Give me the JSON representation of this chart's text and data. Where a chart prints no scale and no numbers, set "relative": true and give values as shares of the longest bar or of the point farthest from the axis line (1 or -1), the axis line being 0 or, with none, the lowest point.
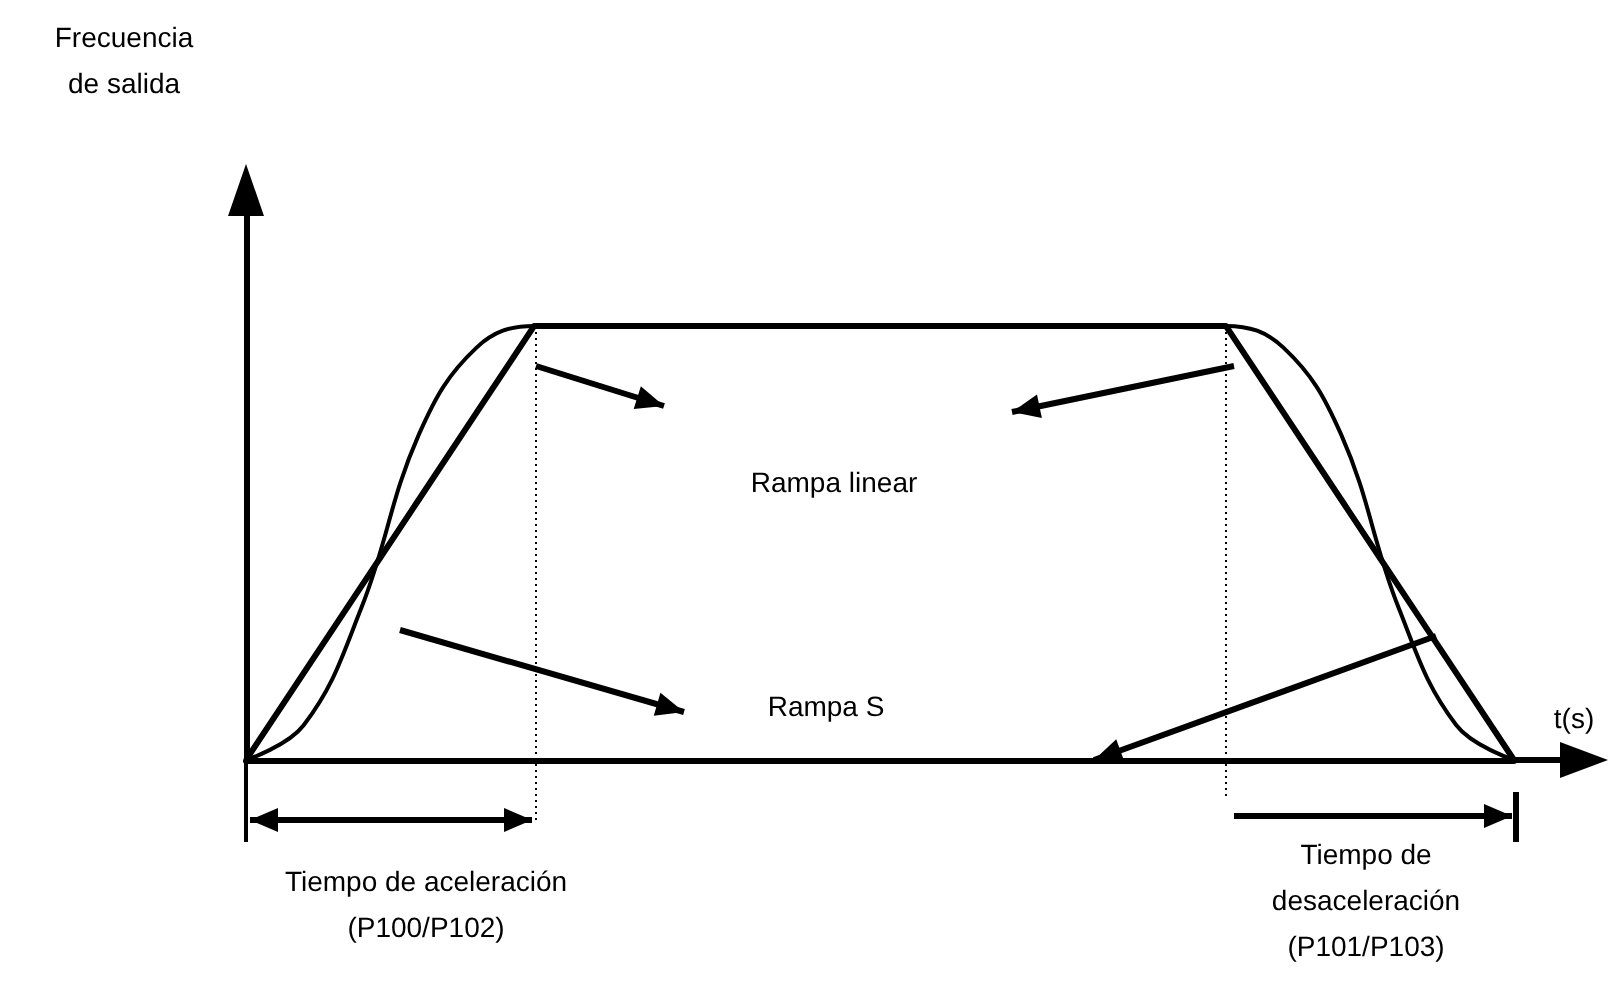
{
  "chart_data": {
    "type": "line",
    "relative": true,
    "xlabel": "t(s)",
    "categories": [
      null,
      null,
      null,
      null,
      null,
      null,
      null,
      null,
      null,
      null,
      null,
      null,
      null,
      null,
      null,
      null,
      null,
      null,
      null,
      null,
      null,
      null,
      null
    ],
    "series": [
      {
        "color": "#000000",
        "values": [
          0,
          0.2,
          0.4,
          0.6,
          0.8,
          1,
          1,
          1,
          1,
          1,
          1,
          1,
          1,
          1,
          1,
          1,
          1,
          1,
          0.8,
          0.6,
          0.4,
          0.2,
          0
        ]
      },
      {
        "color": "#000000",
        "values": [
          0,
          0.08,
          0.35,
          0.75,
          0.95,
          1,
          1,
          1,
          1,
          1,
          1,
          1,
          1,
          1,
          1,
          1,
          1,
          1,
          0.95,
          0.75,
          0.35,
          0.08,
          0
        ]
      }
    ],
    "annotations": [
      "Rampa linear",
      "Rampa S",
      "Tiempo de aceleración\n(P100/P102)",
      "Tiempo de\ndesaceleración\n(P101/P103)",
      "Frecuencia\nde salida"
    ],
    "grid": false,
    "marker": "none",
    "line_style": "solid"
  }
}
